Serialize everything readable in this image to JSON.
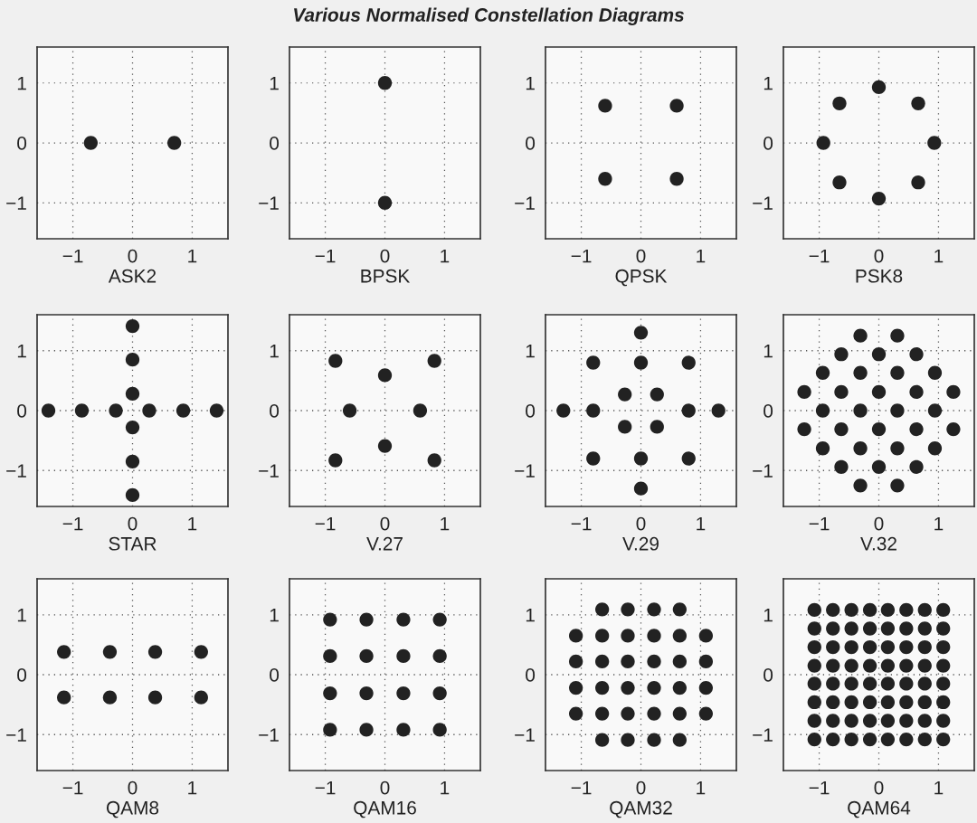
{
  "chart_data": [
    {
      "type": "scatter",
      "xlabel": "ASK2",
      "x": [
        -0.7,
        0.7
      ],
      "values": [
        0,
        0
      ],
      "color": "#222222",
      "marker": "circle",
      "xlim": [
        -1.6,
        1.6
      ],
      "ylim": [
        -1.6,
        1.6
      ],
      "xticks": [
        -1,
        0,
        1
      ],
      "yticks": [
        -1,
        0,
        1
      ],
      "grid": true
    },
    {
      "type": "scatter",
      "title": "Various Normalised Constellation Diagrams",
      "xlabel": "BPSK",
      "x": [
        0,
        0
      ],
      "values": [
        1,
        -1
      ],
      "color": "#222222",
      "marker": "circle",
      "xlim": [
        -1.6,
        1.6
      ],
      "ylim": [
        -1.6,
        1.6
      ],
      "xticks": [
        -1,
        0,
        1
      ],
      "yticks": [
        -1,
        0,
        1
      ],
      "grid": true
    },
    {
      "type": "scatter",
      "xlabel": "QPSK",
      "x": [
        -0.6,
        0.6,
        -0.6,
        0.6
      ],
      "values": [
        0.62,
        0.62,
        -0.6,
        -0.6
      ],
      "color": "#222222",
      "marker": "circle",
      "xlim": [
        -1.6,
        1.6
      ],
      "ylim": [
        -1.6,
        1.6
      ],
      "xticks": [
        -1,
        0,
        1
      ],
      "yticks": [
        -1,
        0,
        1
      ],
      "grid": true
    },
    {
      "type": "scatter",
      "xlabel": "PSK8",
      "x": [
        0,
        0.66,
        0.93,
        0.66,
        0,
        -0.66,
        -0.93,
        -0.66
      ],
      "values": [
        0.93,
        0.66,
        0,
        -0.66,
        -0.93,
        -0.66,
        0,
        0.66
      ],
      "color": "#222222",
      "marker": "circle",
      "xlim": [
        -1.6,
        1.6
      ],
      "ylim": [
        -1.6,
        1.6
      ],
      "xticks": [
        -1,
        0,
        1
      ],
      "yticks": [
        -1,
        0,
        1
      ],
      "grid": true
    },
    {
      "type": "scatter",
      "xlabel": "STAR",
      "x": [
        -1.41,
        -0.85,
        -0.28,
        0.28,
        0.85,
        1.41,
        0,
        0,
        0,
        0,
        0,
        0
      ],
      "values": [
        0,
        0,
        0,
        0,
        0,
        0,
        1.41,
        0.85,
        0.28,
        -0.28,
        -0.85,
        -1.41
      ],
      "color": "#222222",
      "marker": "circle",
      "xlim": [
        -1.6,
        1.6
      ],
      "ylim": [
        -1.6,
        1.6
      ],
      "xticks": [
        -1,
        0,
        1
      ],
      "yticks": [
        -1,
        0,
        1
      ],
      "grid": true
    },
    {
      "type": "scatter",
      "xlabel": "V.27",
      "x": [
        -0.83,
        0.83,
        0,
        -0.59,
        0.59,
        0,
        -0.83,
        0.83
      ],
      "values": [
        0.83,
        0.83,
        0.59,
        0,
        0,
        -0.59,
        -0.83,
        -0.83
      ],
      "color": "#222222",
      "marker": "circle",
      "xlim": [
        -1.6,
        1.6
      ],
      "ylim": [
        -1.6,
        1.6
      ],
      "xticks": [
        -1,
        0,
        1
      ],
      "yticks": [
        -1,
        0,
        1
      ],
      "grid": true
    },
    {
      "type": "scatter",
      "xlabel": "V.29",
      "x": [
        0,
        -0.8,
        0,
        0.8,
        -0.27,
        0.27,
        -1.3,
        -0.8,
        0.8,
        1.3,
        -0.27,
        0.27,
        -0.8,
        0,
        0.8,
        0
      ],
      "values": [
        1.3,
        0.8,
        0.8,
        0.8,
        0.27,
        0.27,
        0,
        0,
        0,
        0,
        -0.27,
        -0.27,
        -0.8,
        -0.8,
        -0.8,
        -1.3
      ],
      "color": "#222222",
      "marker": "circle",
      "xlim": [
        -1.6,
        1.6
      ],
      "ylim": [
        -1.6,
        1.6
      ],
      "xticks": [
        -1,
        0,
        1
      ],
      "yticks": [
        -1,
        0,
        1
      ],
      "grid": true
    },
    {
      "type": "scatter",
      "xlabel": "V.32",
      "x": [
        -0.31,
        0.31,
        -0.63,
        0,
        0.63,
        -0.94,
        -0.31,
        0.31,
        0.94,
        -1.25,
        -0.63,
        0,
        0.63,
        1.25,
        -0.94,
        -0.31,
        0.31,
        0.94,
        -1.25,
        -0.63,
        0,
        0.63,
        1.25,
        -0.94,
        -0.31,
        0.31,
        0.94,
        -0.63,
        0,
        0.63,
        -0.31,
        0.31
      ],
      "values": [
        1.25,
        1.25,
        0.94,
        0.94,
        0.94,
        0.63,
        0.63,
        0.63,
        0.63,
        0.31,
        0.31,
        0.31,
        0.31,
        0.31,
        0,
        0,
        0,
        0,
        -0.31,
        -0.31,
        -0.31,
        -0.31,
        -0.31,
        -0.63,
        -0.63,
        -0.63,
        -0.63,
        -0.94,
        -0.94,
        -0.94,
        -1.25,
        -1.25
      ],
      "color": "#222222",
      "marker": "circle",
      "xlim": [
        -1.6,
        1.6
      ],
      "ylim": [
        -1.6,
        1.6
      ],
      "xticks": [
        -1,
        0,
        1
      ],
      "yticks": [
        -1,
        0,
        1
      ],
      "grid": true
    },
    {
      "type": "scatter",
      "xlabel": "QAM8",
      "x": [
        -1.15,
        -0.38,
        0.38,
        1.15,
        -1.15,
        -0.38,
        0.38,
        1.15
      ],
      "values": [
        0.38,
        0.38,
        0.38,
        0.38,
        -0.38,
        -0.38,
        -0.38,
        -0.38
      ],
      "color": "#222222",
      "marker": "circle",
      "xlim": [
        -1.6,
        1.6
      ],
      "ylim": [
        -1.6,
        1.6
      ],
      "xticks": [
        -1,
        0,
        1
      ],
      "yticks": [
        -1,
        0,
        1
      ],
      "grid": true
    },
    {
      "type": "scatter",
      "xlabel": "QAM16",
      "x": [
        -0.92,
        -0.31,
        0.31,
        0.92,
        -0.92,
        -0.31,
        0.31,
        0.92,
        -0.92,
        -0.31,
        0.31,
        0.92,
        -0.92,
        -0.31,
        0.31,
        0.92
      ],
      "values": [
        0.92,
        0.92,
        0.92,
        0.92,
        0.31,
        0.31,
        0.31,
        0.31,
        -0.31,
        -0.31,
        -0.31,
        -0.31,
        -0.92,
        -0.92,
        -0.92,
        -0.92
      ],
      "color": "#222222",
      "marker": "circle",
      "xlim": [
        -1.6,
        1.6
      ],
      "ylim": [
        -1.6,
        1.6
      ],
      "xticks": [
        -1,
        0,
        1
      ],
      "yticks": [
        -1,
        0,
        1
      ],
      "grid": true
    },
    {
      "type": "scatter",
      "xlabel": "QAM32",
      "x": [
        -0.65,
        -0.22,
        0.22,
        0.65,
        -1.09,
        -0.65,
        -0.22,
        0.22,
        0.65,
        1.09,
        -1.09,
        -0.65,
        -0.22,
        0.22,
        0.65,
        1.09,
        -1.09,
        -0.65,
        -0.22,
        0.22,
        0.65,
        1.09,
        -1.09,
        -0.65,
        -0.22,
        0.22,
        0.65,
        1.09,
        -0.65,
        -0.22,
        0.22,
        0.65
      ],
      "values": [
        1.09,
        1.09,
        1.09,
        1.09,
        0.65,
        0.65,
        0.65,
        0.65,
        0.65,
        0.65,
        0.22,
        0.22,
        0.22,
        0.22,
        0.22,
        0.22,
        -0.22,
        -0.22,
        -0.22,
        -0.22,
        -0.22,
        -0.22,
        -0.65,
        -0.65,
        -0.65,
        -0.65,
        -0.65,
        -0.65,
        -1.09,
        -1.09,
        -1.09,
        -1.09
      ],
      "color": "#222222",
      "marker": "circle",
      "xlim": [
        -1.6,
        1.6
      ],
      "ylim": [
        -1.6,
        1.6
      ],
      "xticks": [
        -1,
        0,
        1
      ],
      "yticks": [
        -1,
        0,
        1
      ],
      "grid": true
    },
    {
      "type": "scatter",
      "xlabel": "QAM64",
      "x": [
        -1.08,
        -0.77,
        -0.46,
        -0.15,
        0.15,
        0.46,
        0.77,
        1.08,
        -1.08,
        -0.77,
        -0.46,
        -0.15,
        0.15,
        0.46,
        0.77,
        1.08,
        -1.08,
        -0.77,
        -0.46,
        -0.15,
        0.15,
        0.46,
        0.77,
        1.08,
        -1.08,
        -0.77,
        -0.46,
        -0.15,
        0.15,
        0.46,
        0.77,
        1.08,
        -1.08,
        -0.77,
        -0.46,
        -0.15,
        0.15,
        0.46,
        0.77,
        1.08,
        -1.08,
        -0.77,
        -0.46,
        -0.15,
        0.15,
        0.46,
        0.77,
        1.08,
        -1.08,
        -0.77,
        -0.46,
        -0.15,
        0.15,
        0.46,
        0.77,
        1.08,
        -1.08,
        -0.77,
        -0.46,
        -0.15,
        0.15,
        0.46,
        0.77,
        1.08
      ],
      "values": [
        1.08,
        1.08,
        1.08,
        1.08,
        1.08,
        1.08,
        1.08,
        1.08,
        0.77,
        0.77,
        0.77,
        0.77,
        0.77,
        0.77,
        0.77,
        0.77,
        0.46,
        0.46,
        0.46,
        0.46,
        0.46,
        0.46,
        0.46,
        0.46,
        0.15,
        0.15,
        0.15,
        0.15,
        0.15,
        0.15,
        0.15,
        0.15,
        -0.15,
        -0.15,
        -0.15,
        -0.15,
        -0.15,
        -0.15,
        -0.15,
        -0.15,
        -0.46,
        -0.46,
        -0.46,
        -0.46,
        -0.46,
        -0.46,
        -0.46,
        -0.46,
        -0.77,
        -0.77,
        -0.77,
        -0.77,
        -0.77,
        -0.77,
        -0.77,
        -0.77,
        -1.08,
        -1.08,
        -1.08,
        -1.08,
        -1.08,
        -1.08,
        -1.08,
        -1.08
      ],
      "color": "#222222",
      "marker": "circle",
      "xlim": [
        -1.6,
        1.6
      ],
      "ylim": [
        -1.6,
        1.6
      ],
      "xticks": [
        -1,
        0,
        1
      ],
      "yticks": [
        -1,
        0,
        1
      ],
      "grid": true
    }
  ]
}
